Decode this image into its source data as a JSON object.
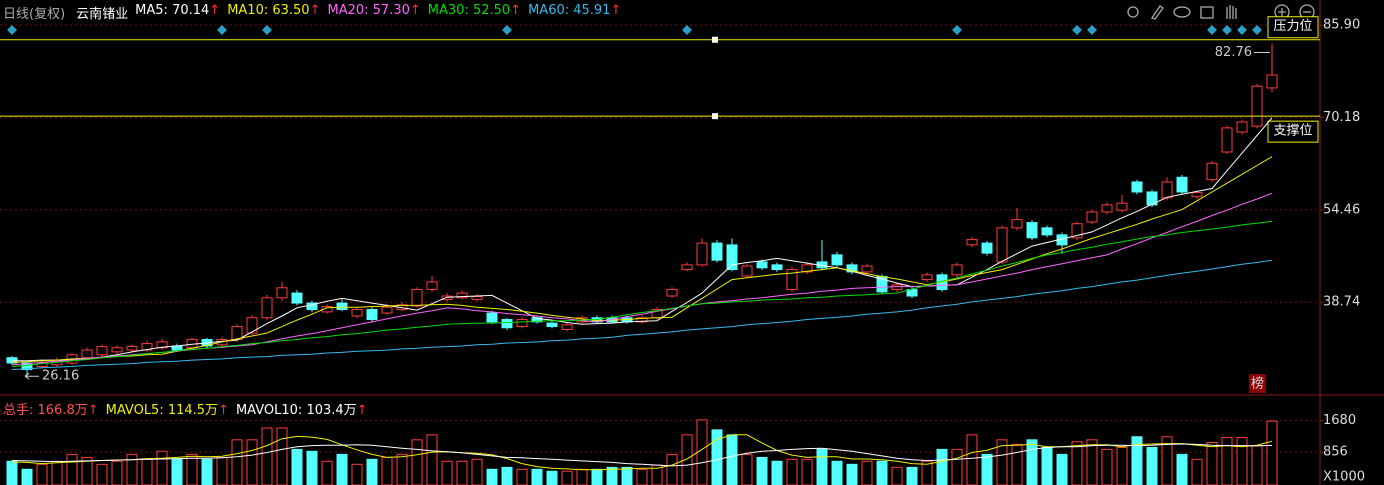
{
  "header": {
    "period": "日线(复权)",
    "name": "云南锗业"
  },
  "chart_data": [
    {
      "type": "candlestick",
      "open": [
        29.3,
        28.4,
        27.8,
        28.1,
        28.4,
        29.3,
        29.8,
        30.3,
        30.6,
        30.6,
        31.0,
        31.3,
        31.0,
        32.4,
        31.5,
        32.4,
        33.5,
        36.1,
        39.5,
        40.3,
        38.6,
        37.1,
        38.6,
        36.4,
        37.5,
        36.9,
        37.5,
        38.1,
        40.9,
        39.2,
        39.5,
        39.2,
        36.9,
        35.8,
        34.6,
        36.1,
        35.2,
        34.1,
        35.4,
        36.1,
        36.1,
        36.1,
        35.4,
        36.1,
        39.8,
        44.3,
        45.1,
        48.8,
        48.5,
        43.2,
        45.6,
        45.1,
        40.9,
        43.9,
        45.6,
        46.8,
        45.1,
        43.9,
        43.1,
        40.9,
        40.9,
        42.6,
        43.4,
        43.4,
        48.5,
        48.8,
        45.6,
        51.4,
        52.3,
        51.4,
        50.2,
        49.7,
        52.4,
        54.1,
        54.4,
        59.2,
        57.5,
        56.5,
        60.0,
        56.7,
        59.6,
        64.3,
        67.7,
        68.7,
        75.2
      ],
      "high": [
        29.6,
        28.7,
        28.7,
        29.3,
        30.1,
        31.0,
        31.5,
        31.4,
        31.6,
        32.2,
        32.5,
        31.7,
        32.7,
        32.7,
        32.9,
        35.0,
        36.5,
        40.0,
        42.2,
        40.8,
        39.0,
        38.4,
        39.3,
        37.9,
        37.9,
        38.4,
        38.7,
        41.3,
        43.2,
        40.3,
        40.8,
        40.1,
        37.3,
        36.1,
        36.2,
        36.5,
        35.5,
        35.2,
        36.5,
        36.5,
        36.5,
        36.5,
        36.5,
        37.9,
        41.3,
        45.5,
        49.6,
        49.3,
        49.6,
        45.3,
        46.0,
        45.5,
        44.7,
        45.5,
        49.3,
        47.3,
        45.5,
        45.3,
        43.5,
        42.1,
        41.3,
        43.8,
        43.8,
        45.5,
        49.8,
        49.2,
        51.8,
        54.8,
        52.7,
        51.8,
        50.6,
        52.5,
        54.5,
        55.7,
        57.0,
        59.6,
        57.9,
        60.0,
        60.4,
        57.8,
        62.8,
        68.8,
        69.8,
        75.9,
        82.76
      ],
      "low": [
        28.1,
        26.16,
        27.5,
        27.8,
        28.1,
        29.0,
        29.5,
        30.0,
        30.3,
        30.3,
        30.6,
        30.3,
        30.6,
        31.0,
        31.2,
        32.0,
        33.2,
        35.7,
        39.0,
        38.2,
        37.0,
        36.8,
        37.2,
        36.0,
        35.3,
        36.6,
        37.2,
        37.8,
        40.5,
        38.8,
        39.2,
        38.9,
        35.0,
        34.0,
        34.3,
        35.1,
        34.3,
        33.8,
        35.1,
        35.1,
        35.1,
        35.1,
        35.1,
        35.8,
        39.5,
        44.0,
        44.8,
        45.5,
        44.0,
        42.9,
        44.2,
        43.9,
        40.5,
        43.5,
        44.2,
        44.7,
        43.5,
        43.5,
        40.1,
        40.5,
        39.4,
        42.2,
        40.5,
        43.0,
        48.1,
        46.7,
        45.2,
        51.0,
        49.3,
        49.8,
        47.0,
        49.3,
        52.0,
        53.7,
        54.0,
        57.1,
        54.9,
        56.1,
        57.1,
        56.3,
        59.2,
        64.0,
        67.3,
        68.3,
        74.5
      ],
      "close": [
        28.4,
        27.3,
        28.4,
        28.9,
        29.8,
        30.6,
        31.2,
        31.0,
        31.2,
        31.7,
        32.0,
        30.6,
        32.4,
        31.3,
        32.4,
        34.6,
        36.1,
        39.5,
        41.2,
        38.6,
        37.5,
        38.0,
        37.5,
        37.5,
        35.8,
        37.9,
        38.3,
        40.9,
        42.2,
        39.8,
        40.3,
        39.7,
        35.4,
        34.4,
        35.8,
        35.4,
        34.6,
        34.9,
        36.1,
        35.4,
        35.4,
        35.4,
        36.1,
        37.5,
        40.9,
        45.1,
        48.8,
        45.9,
        44.3,
        44.9,
        44.6,
        44.3,
        44.3,
        45.1,
        44.6,
        45.1,
        43.9,
        44.9,
        40.5,
        41.7,
        39.8,
        43.4,
        40.9,
        45.1,
        49.4,
        47.1,
        51.4,
        52.8,
        49.7,
        50.2,
        48.5,
        52.1,
        54.1,
        55.3,
        55.6,
        57.5,
        55.3,
        59.2,
        57.5,
        57.4,
        62.4,
        68.4,
        69.4,
        75.5,
        77.4
      ],
      "up_color": "#ff3b3b",
      "down_color": "#54ffff",
      "ylim": [
        23.3,
        88.8
      ],
      "yticks": [
        38.74,
        54.46,
        70.18,
        {
          "value": 85.9,
          "label": "85.90"
        }
      ],
      "lines": [
        {
          "label": "MA5: 70.14",
          "arrow": "↑",
          "color": "#ffffff",
          "values": [
            28.8,
            28.8,
            28.9,
            28.9,
            29.0,
            29.0,
            29.4,
            29.8,
            30.3,
            30.7,
            31.1,
            31.3,
            31.6,
            31.8,
            32.1,
            32.3,
            33.7,
            35.1,
            36.4,
            37.8,
            38.3,
            38.9,
            39.4,
            39.0,
            38.6,
            38.2,
            37.8,
            37.4,
            38.5,
            39.6,
            39.7,
            39.8,
            39.9,
            38.6,
            37.3,
            36.0,
            35.7,
            35.3,
            35.0,
            35.1,
            35.2,
            35.4,
            35.5,
            35.6,
            37.2,
            38.7,
            40.3,
            42.7,
            45.1,
            45.5,
            45.8,
            46.2,
            45.8,
            45.4,
            45.0,
            44.6,
            44.0,
            43.3,
            42.7,
            42.0,
            41.4,
            41.5,
            41.6,
            41.7,
            43.0,
            44.3,
            45.7,
            47.0,
            48.3,
            48.9,
            49.5,
            50.1,
            50.7,
            51.9,
            53.1,
            54.2,
            55.4,
            56.6,
            57.1,
            57.6,
            58.1,
            61.1,
            64.1,
            67.1,
            70.1
          ]
        },
        {
          "label": "MA10: 63.50",
          "arrow": "↑",
          "color": "#f0f000",
          "values": [
            28.5,
            28.6,
            28.8,
            28.9,
            29.1,
            29.2,
            29.3,
            29.5,
            29.6,
            29.8,
            29.9,
            30.4,
            30.9,
            31.4,
            32.0,
            32.5,
            33.0,
            33.5,
            34.6,
            35.7,
            36.7,
            37.8,
            37.9,
            37.9,
            38.0,
            38.1,
            38.2,
            38.2,
            38.3,
            38.4,
            38.2,
            37.9,
            37.7,
            37.5,
            37.2,
            36.9,
            36.5,
            36.2,
            35.9,
            35.6,
            35.7,
            35.8,
            36.0,
            36.1,
            36.2,
            37.8,
            39.4,
            41.0,
            42.6,
            42.9,
            43.2,
            43.5,
            43.7,
            44.0,
            44.3,
            44.6,
            44.1,
            43.6,
            43.1,
            42.7,
            42.2,
            41.7,
            42.2,
            42.7,
            43.3,
            43.8,
            44.3,
            45.2,
            46.1,
            47.0,
            47.8,
            48.7,
            49.6,
            50.4,
            51.2,
            52.0,
            52.9,
            53.7,
            54.5,
            56.0,
            57.5,
            59.0,
            60.5,
            62.0,
            63.5
          ]
        },
        {
          "label": "MA20: 57.30",
          "arrow": "↑",
          "color": "#ff66ff",
          "values": [
            28.1,
            28.3,
            28.5,
            28.7,
            28.9,
            29.2,
            29.4,
            29.6,
            29.8,
            30.0,
            30.2,
            30.4,
            30.7,
            30.9,
            31.1,
            31.3,
            31.5,
            32.0,
            32.5,
            33.0,
            33.4,
            33.9,
            34.4,
            34.9,
            35.4,
            35.9,
            36.4,
            36.9,
            37.3,
            37.8,
            37.6,
            37.3,
            37.1,
            36.8,
            36.6,
            36.4,
            36.1,
            35.9,
            35.6,
            35.4,
            35.8,
            36.3,
            36.7,
            37.2,
            37.6,
            38.1,
            38.5,
            38.8,
            39.0,
            39.3,
            39.5,
            39.8,
            40.1,
            40.3,
            40.6,
            40.8,
            41.1,
            41.2,
            41.3,
            41.4,
            41.4,
            41.5,
            41.6,
            41.7,
            42.2,
            42.7,
            43.2,
            43.7,
            44.3,
            44.8,
            45.3,
            45.8,
            46.3,
            46.8,
            47.8,
            48.7,
            49.7,
            50.6,
            51.6,
            52.5,
            53.5,
            54.4,
            55.4,
            56.3,
            57.3
          ]
        },
        {
          "label": "MA30: 52.50",
          "arrow": "↑",
          "color": "#00dd00",
          "values": [
            27.8,
            28.0,
            28.3,
            28.5,
            28.8,
            29.0,
            29.3,
            29.5,
            29.7,
            30.0,
            30.2,
            30.5,
            30.7,
            30.9,
            31.2,
            31.4,
            31.7,
            31.9,
            32.2,
            32.4,
            32.7,
            32.9,
            33.2,
            33.4,
            33.7,
            34.0,
            34.2,
            34.5,
            34.7,
            35.0,
            35.1,
            35.2,
            35.2,
            35.3,
            35.4,
            35.5,
            35.6,
            35.6,
            35.7,
            35.8,
            36.2,
            36.6,
            37.0,
            37.3,
            37.7,
            38.1,
            38.5,
            38.6,
            38.8,
            38.9,
            39.1,
            39.2,
            39.3,
            39.5,
            39.6,
            39.8,
            39.9,
            40.0,
            40.2,
            40.3,
            41.0,
            41.6,
            42.3,
            42.9,
            43.6,
            44.2,
            44.9,
            45.5,
            46.2,
            46.8,
            47.2,
            47.7,
            48.1,
            48.6,
            49.0,
            49.5,
            49.9,
            50.2,
            50.6,
            50.9,
            51.2,
            51.5,
            51.9,
            52.2,
            52.5
          ]
        },
        {
          "label": "MA60: 45.91",
          "arrow": "↑",
          "color": "#33bbee",
          "values": [
            27.3,
            27.4,
            27.6,
            27.7,
            27.8,
            28.0,
            28.1,
            28.2,
            28.3,
            28.5,
            28.6,
            28.7,
            28.9,
            29.0,
            29.1,
            29.3,
            29.4,
            29.5,
            29.7,
            29.8,
            29.9,
            30.1,
            30.2,
            30.4,
            30.5,
            30.6,
            30.8,
            30.9,
            31.1,
            31.2,
            31.3,
            31.5,
            31.6,
            31.8,
            31.9,
            32.0,
            32.2,
            32.3,
            32.5,
            32.6,
            32.8,
            33.1,
            33.3,
            33.5,
            33.7,
            34.0,
            34.2,
            34.4,
            34.6,
            34.9,
            35.1,
            35.3,
            35.5,
            35.8,
            36.0,
            36.2,
            36.4,
            36.7,
            36.9,
            37.1,
            37.4,
            37.8,
            38.1,
            38.4,
            38.8,
            39.1,
            39.4,
            39.7,
            40.1,
            40.4,
            40.7,
            41.1,
            41.4,
            41.8,
            42.2,
            42.5,
            42.9,
            43.3,
            43.7,
            44.0,
            44.4,
            44.8,
            45.2,
            45.5,
            45.9
          ]
        }
      ],
      "levels": [
        {
          "label": "压力位",
          "value": 83.4,
          "color": "#f0f000"
        },
        {
          "label": "支撑位",
          "value": 70.4,
          "color": "#f0f000"
        }
      ],
      "badge": "榜"
    },
    {
      "type": "bar",
      "title": "总手: 166.8万",
      "title_arrow": "↑",
      "values": [
        620,
        410,
        540,
        620,
        800,
        720,
        540,
        620,
        800,
        670,
        880,
        670,
        800,
        670,
        720,
        1180,
        1180,
        1490,
        1490,
        930,
        880,
        620,
        800,
        540,
        670,
        720,
        800,
        1180,
        1310,
        620,
        620,
        670,
        410,
        460,
        410,
        410,
        360,
        360,
        410,
        410,
        460,
        460,
        410,
        520,
        800,
        1310,
        1700,
        1440,
        1310,
        800,
        720,
        620,
        670,
        670,
        930,
        620,
        540,
        620,
        620,
        460,
        460,
        620,
        930,
        930,
        1310,
        800,
        1180,
        1060,
        1180,
        980,
        800,
        1130,
        1180,
        930,
        980,
        1260,
        980,
        1260,
        800,
        670,
        1110,
        1240,
        1240,
        1030,
        1668
      ],
      "ylim": [
        0,
        2220
      ],
      "yticks": [
        856,
        1680
      ],
      "unit": "X1000",
      "lines": [
        {
          "label": "MAVOL5: 114.5万",
          "arrow": "↑",
          "color": "#f0f000",
          "values": [
            600,
            590,
            560,
            580,
            600,
            620,
            640,
            650,
            660,
            690,
            700,
            720,
            750,
            740,
            750,
            820,
            900,
            1030,
            1210,
            1270,
            1250,
            1190,
            1050,
            920,
            800,
            720,
            740,
            790,
            860,
            870,
            840,
            830,
            790,
            690,
            560,
            480,
            440,
            420,
            400,
            400,
            410,
            420,
            440,
            440,
            520,
            680,
            930,
            1190,
            1310,
            1310,
            1100,
            900,
            780,
            720,
            740,
            740,
            680,
            680,
            660,
            620,
            560,
            540,
            620,
            700,
            850,
            910,
            1030,
            1040,
            1060,
            1000,
            1000,
            1030,
            1050,
            1050,
            1000,
            1060,
            1070,
            1080,
            1080,
            1040,
            1000,
            1030,
            1000,
            1040,
            1145
          ]
        },
        {
          "label": "MAVOL10: 103.4万",
          "arrow": "↑",
          "color": "#ffffff",
          "values": [
            640,
            630,
            620,
            610,
            620,
            630,
            640,
            650,
            660,
            670,
            680,
            690,
            700,
            700,
            710,
            740,
            780,
            850,
            930,
            1000,
            1030,
            1040,
            1040,
            1050,
            1040,
            1000,
            960,
            930,
            890,
            870,
            840,
            800,
            760,
            720,
            710,
            690,
            670,
            650,
            630,
            610,
            590,
            560,
            540,
            520,
            500,
            520,
            580,
            660,
            750,
            830,
            880,
            900,
            930,
            950,
            960,
            920,
            880,
            820,
            760,
            700,
            660,
            640,
            650,
            670,
            700,
            730,
            780,
            850,
            930,
            980,
            1000,
            1000,
            1030,
            1040,
            1040,
            1030,
            1040,
            1060,
            1070,
            1060,
            1040,
            1030,
            1030,
            1020,
            1034
          ]
        }
      ]
    }
  ]
}
